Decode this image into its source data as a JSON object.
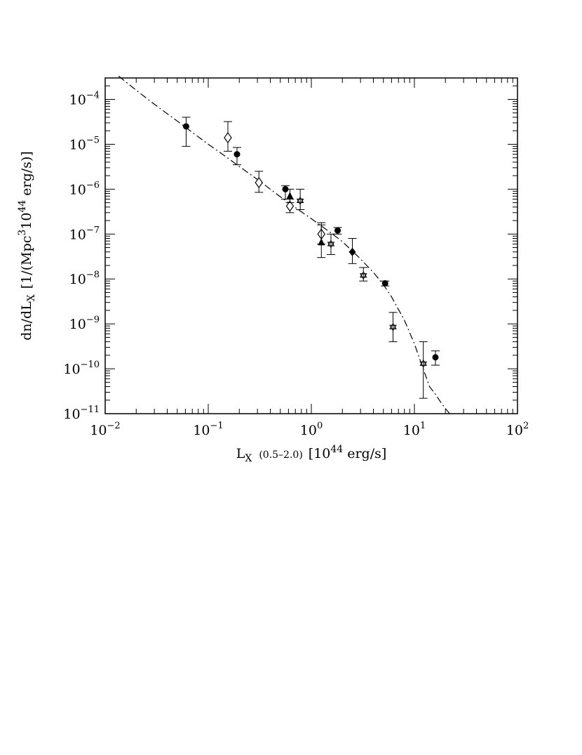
{
  "chart_data": {
    "type": "scatter",
    "title": "",
    "xlabel": {
      "main": "L",
      "sub": "X",
      "range": "(0.5–2.0)",
      "unit_open": "[10",
      "unit_exp": "44",
      "unit_close": "erg/s]"
    },
    "ylabel": {
      "main": "dn/dL",
      "sub": "X",
      "unit_open": "[1/(Mpc",
      "unit_exp1": "3",
      "unit_mid": "10",
      "unit_exp2": "44",
      "unit_close": "erg/s)]"
    },
    "xscale": "log",
    "yscale": "log",
    "xlim": [
      0.01,
      100
    ],
    "ylim": [
      1e-11,
      0.0003
    ],
    "x_ticks": [
      {
        "base": "10",
        "exp": "−2"
      },
      {
        "base": "10",
        "exp": "−1"
      },
      {
        "base": "10",
        "exp": "0"
      },
      {
        "base": "10",
        "exp": "1"
      },
      {
        "base": "10",
        "exp": "2"
      }
    ],
    "y_ticks": [
      {
        "base": "10",
        "exp": "−4"
      },
      {
        "base": "10",
        "exp": "−5"
      },
      {
        "base": "10",
        "exp": "−6"
      },
      {
        "base": "10",
        "exp": "−7"
      },
      {
        "base": "10",
        "exp": "−8"
      },
      {
        "base": "10",
        "exp": "−9"
      },
      {
        "base": "10",
        "exp": "−10"
      },
      {
        "base": "10",
        "exp": "−11"
      }
    ],
    "grid": false,
    "series": [
      {
        "marker": "filled-circle",
        "points": [
          {
            "x": 0.061,
            "y": 2.5e-05,
            "ylo": 9e-06,
            "yhi": 4e-05
          },
          {
            "x": 0.19,
            "y": 6e-06,
            "ylo": 3.5e-06,
            "yhi": 8.5e-06
          },
          {
            "x": 0.56,
            "y": 1e-06,
            "ylo": 6e-07,
            "yhi": 1.2e-06
          },
          {
            "x": 1.8,
            "y": 1.2e-07,
            "ylo": 1e-07,
            "yhi": 1.4e-07
          },
          {
            "x": 5.2,
            "y": 8e-09,
            "ylo": 7e-09,
            "yhi": 9e-09
          },
          {
            "x": 16,
            "y": 1.8e-10,
            "ylo": 1.2e-10,
            "yhi": 2.5e-10
          }
        ]
      },
      {
        "marker": "open-diamond",
        "points": [
          {
            "x": 0.155,
            "y": 1.4e-05,
            "ylo": 7e-06,
            "yhi": 3.2e-05
          },
          {
            "x": 0.31,
            "y": 1.4e-06,
            "ylo": 8.5e-07,
            "yhi": 2.5e-06
          },
          {
            "x": 0.62,
            "y": 4.2e-07,
            "ylo": 3e-07,
            "yhi": 6e-07
          },
          {
            "x": 1.25,
            "y": 1e-07,
            "ylo": 6e-08,
            "yhi": 1.6e-07
          }
        ]
      },
      {
        "marker": "filled-triangle",
        "points": [
          {
            "x": 0.62,
            "y": 7e-07,
            "ylo": 5e-07,
            "yhi": 1e-06
          },
          {
            "x": 1.25,
            "y": 6.5e-08,
            "ylo": 3e-08,
            "yhi": 1.8e-07
          }
        ]
      },
      {
        "marker": "star",
        "points": [
          {
            "x": 0.78,
            "y": 5.5e-07,
            "ylo": 3.5e-07,
            "yhi": 1e-06
          },
          {
            "x": 1.55,
            "y": 6e-08,
            "ylo": 3.5e-08,
            "yhi": 1e-07
          },
          {
            "x": 3.2,
            "y": 1.2e-08,
            "ylo": 9e-09,
            "yhi": 1.8e-08
          },
          {
            "x": 6.2,
            "y": 8.5e-10,
            "ylo": 4e-10,
            "yhi": 1.8e-09
          },
          {
            "x": 12.2,
            "y": 1.3e-10,
            "ylo": 2.2e-11,
            "yhi": 4e-10
          }
        ]
      },
      {
        "marker": "filled-diamond",
        "points": [
          {
            "x": 2.5,
            "y": 4e-08,
            "ylo": 2.2e-08,
            "yhi": 8e-08
          }
        ]
      }
    ],
    "model_curve": {
      "style": "dash-dot",
      "x": [
        0.0135,
        0.02,
        0.03,
        0.05,
        0.07,
        0.1,
        0.15,
        0.2,
        0.3,
        0.5,
        0.7,
        1.0,
        1.5,
        2.0,
        3.0,
        4.0,
        5.0,
        6.0,
        8.0,
        10.0,
        12.0,
        14.0,
        16.0,
        18.0,
        20.0,
        22.0
      ],
      "y": [
        0.00033,
        0.00016,
        7.8e-05,
        3.3e-05,
        1.85e-05,
        1e-05,
        5.2e-06,
        3.2e-06,
        1.65e-06,
        6.8e-07,
        3.9e-07,
        2.2e-07,
        1.12e-07,
        6.8e-08,
        2.8e-08,
        1.4e-08,
        7.5e-09,
        4e-09,
        1.2e-09,
        3.6e-10,
        1.1e-10,
        4e-11,
        2.7e-11,
        1.8e-11,
        1.3e-11,
        1e-11
      ]
    }
  }
}
